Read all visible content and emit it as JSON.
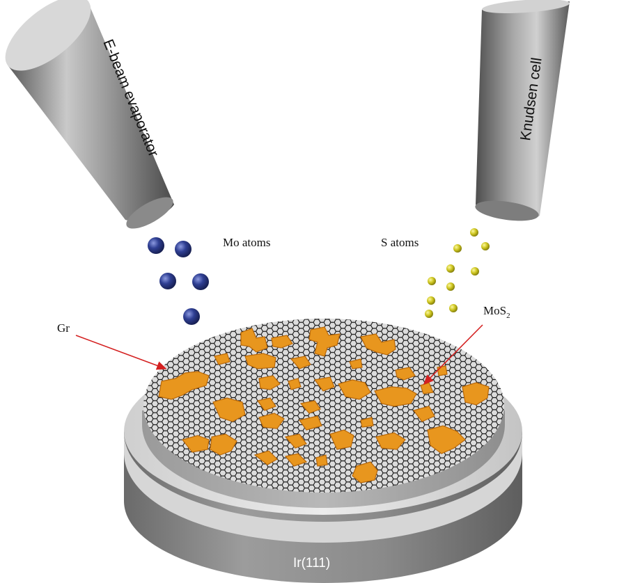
{
  "labels": {
    "ebeam": "E-beam evaporator",
    "knudsen": "Knudsen cell",
    "mo_atoms": "Mo atoms",
    "s_atoms": "S atoms",
    "gr": "Gr",
    "mos2_main": "MoS",
    "mos2_sub": "2",
    "substrate": "Ir(111)"
  },
  "colors": {
    "mo_atom": "#2b3a86",
    "s_atom": "#c8c21a",
    "mos2_island": "#e8961e",
    "arrow": "#d42020",
    "graphene_line": "#111111"
  }
}
